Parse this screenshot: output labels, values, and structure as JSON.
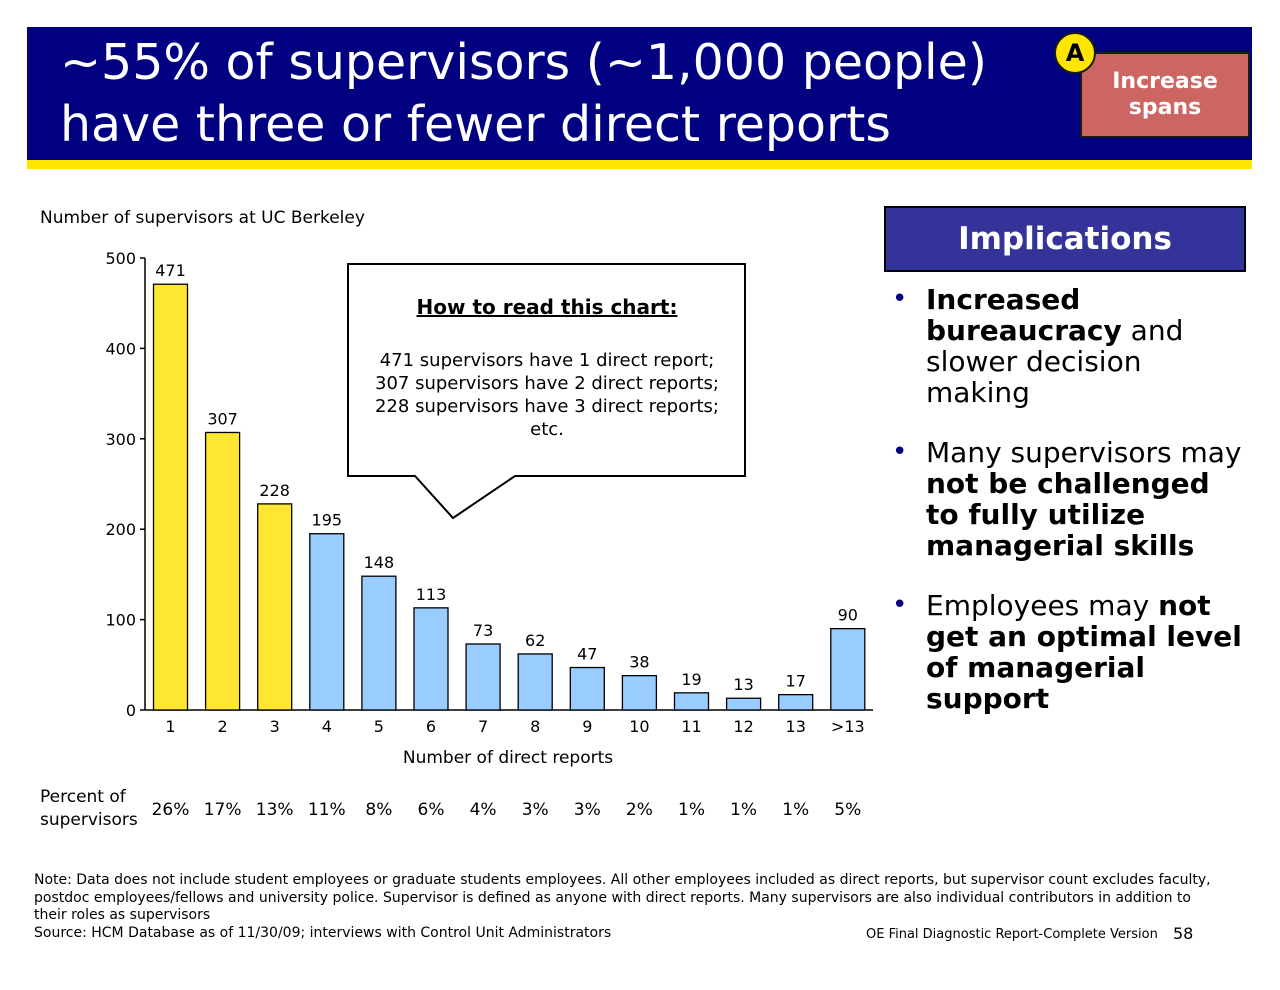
{
  "header": {
    "title_line1": "~55% of supervisors (~1,000 people)",
    "title_line2": "have three or fewer direct reports",
    "badge_letter": "A",
    "badge_line1": "Increase",
    "badge_line2": "spans"
  },
  "colors": {
    "title_bg": "#000080",
    "accent_yellow": "#ffe600",
    "badge_red": "#cd6563",
    "bar_highlight": "#ffe633",
    "bar_normal": "#99ccff",
    "implications_bg": "#333399"
  },
  "chart_data": {
    "type": "bar",
    "title": "Number of supervisors at UC Berkeley",
    "xlabel": "Number of direct reports",
    "ylabel": "",
    "ylim": [
      0,
      500
    ],
    "yticks": [
      "0",
      "100",
      "200",
      "300",
      "400",
      "500"
    ],
    "categories": [
      "1",
      "2",
      "3",
      "4",
      "5",
      "6",
      "7",
      "8",
      "9",
      "10",
      "11",
      "12",
      "13",
      ">13"
    ],
    "values": [
      471,
      307,
      228,
      195,
      148,
      113,
      73,
      62,
      47,
      38,
      19,
      13,
      17,
      90
    ],
    "highlighted_categories": [
      "1",
      "2",
      "3"
    ],
    "percent_label": "Percent of supervisors",
    "percents": [
      "26%",
      "17%",
      "13%",
      "11%",
      "8%",
      "6%",
      "4%",
      "3%",
      "3%",
      "2%",
      "1%",
      "1%",
      "1%",
      "5%"
    ]
  },
  "callout": {
    "heading": "How to read this chart:",
    "line1": "471 supervisors have 1 direct report;",
    "line2": "307 supervisors have 2 direct reports;",
    "line3": "228 supervisors have 3 direct reports;",
    "line4": "etc."
  },
  "implications": {
    "heading": "Implications",
    "b1_bold": "Increased bureaucracy",
    "b1_rest": " and slower decision making",
    "b2_pre": "Many supervisors may ",
    "b2_bold": "not be challenged to fully utilize managerial skills",
    "b3_pre": "Employees may ",
    "b3_bold": "not get an optimal level of managerial support"
  },
  "footer": {
    "note": "Note: Data does not include student employees or graduate students employees. All other employees included as direct reports, but supervisor count excludes faculty, postdoc employees/fellows and university police. Supervisor is defined as anyone with direct reports. Many supervisors are also individual contributors in addition to their roles as supervisors",
    "source": "Source: HCM Database as of 11/30/09; interviews with Control Unit Administrators",
    "doc_name": "OE Final Diagnostic Report-Complete Version",
    "page": "58"
  }
}
